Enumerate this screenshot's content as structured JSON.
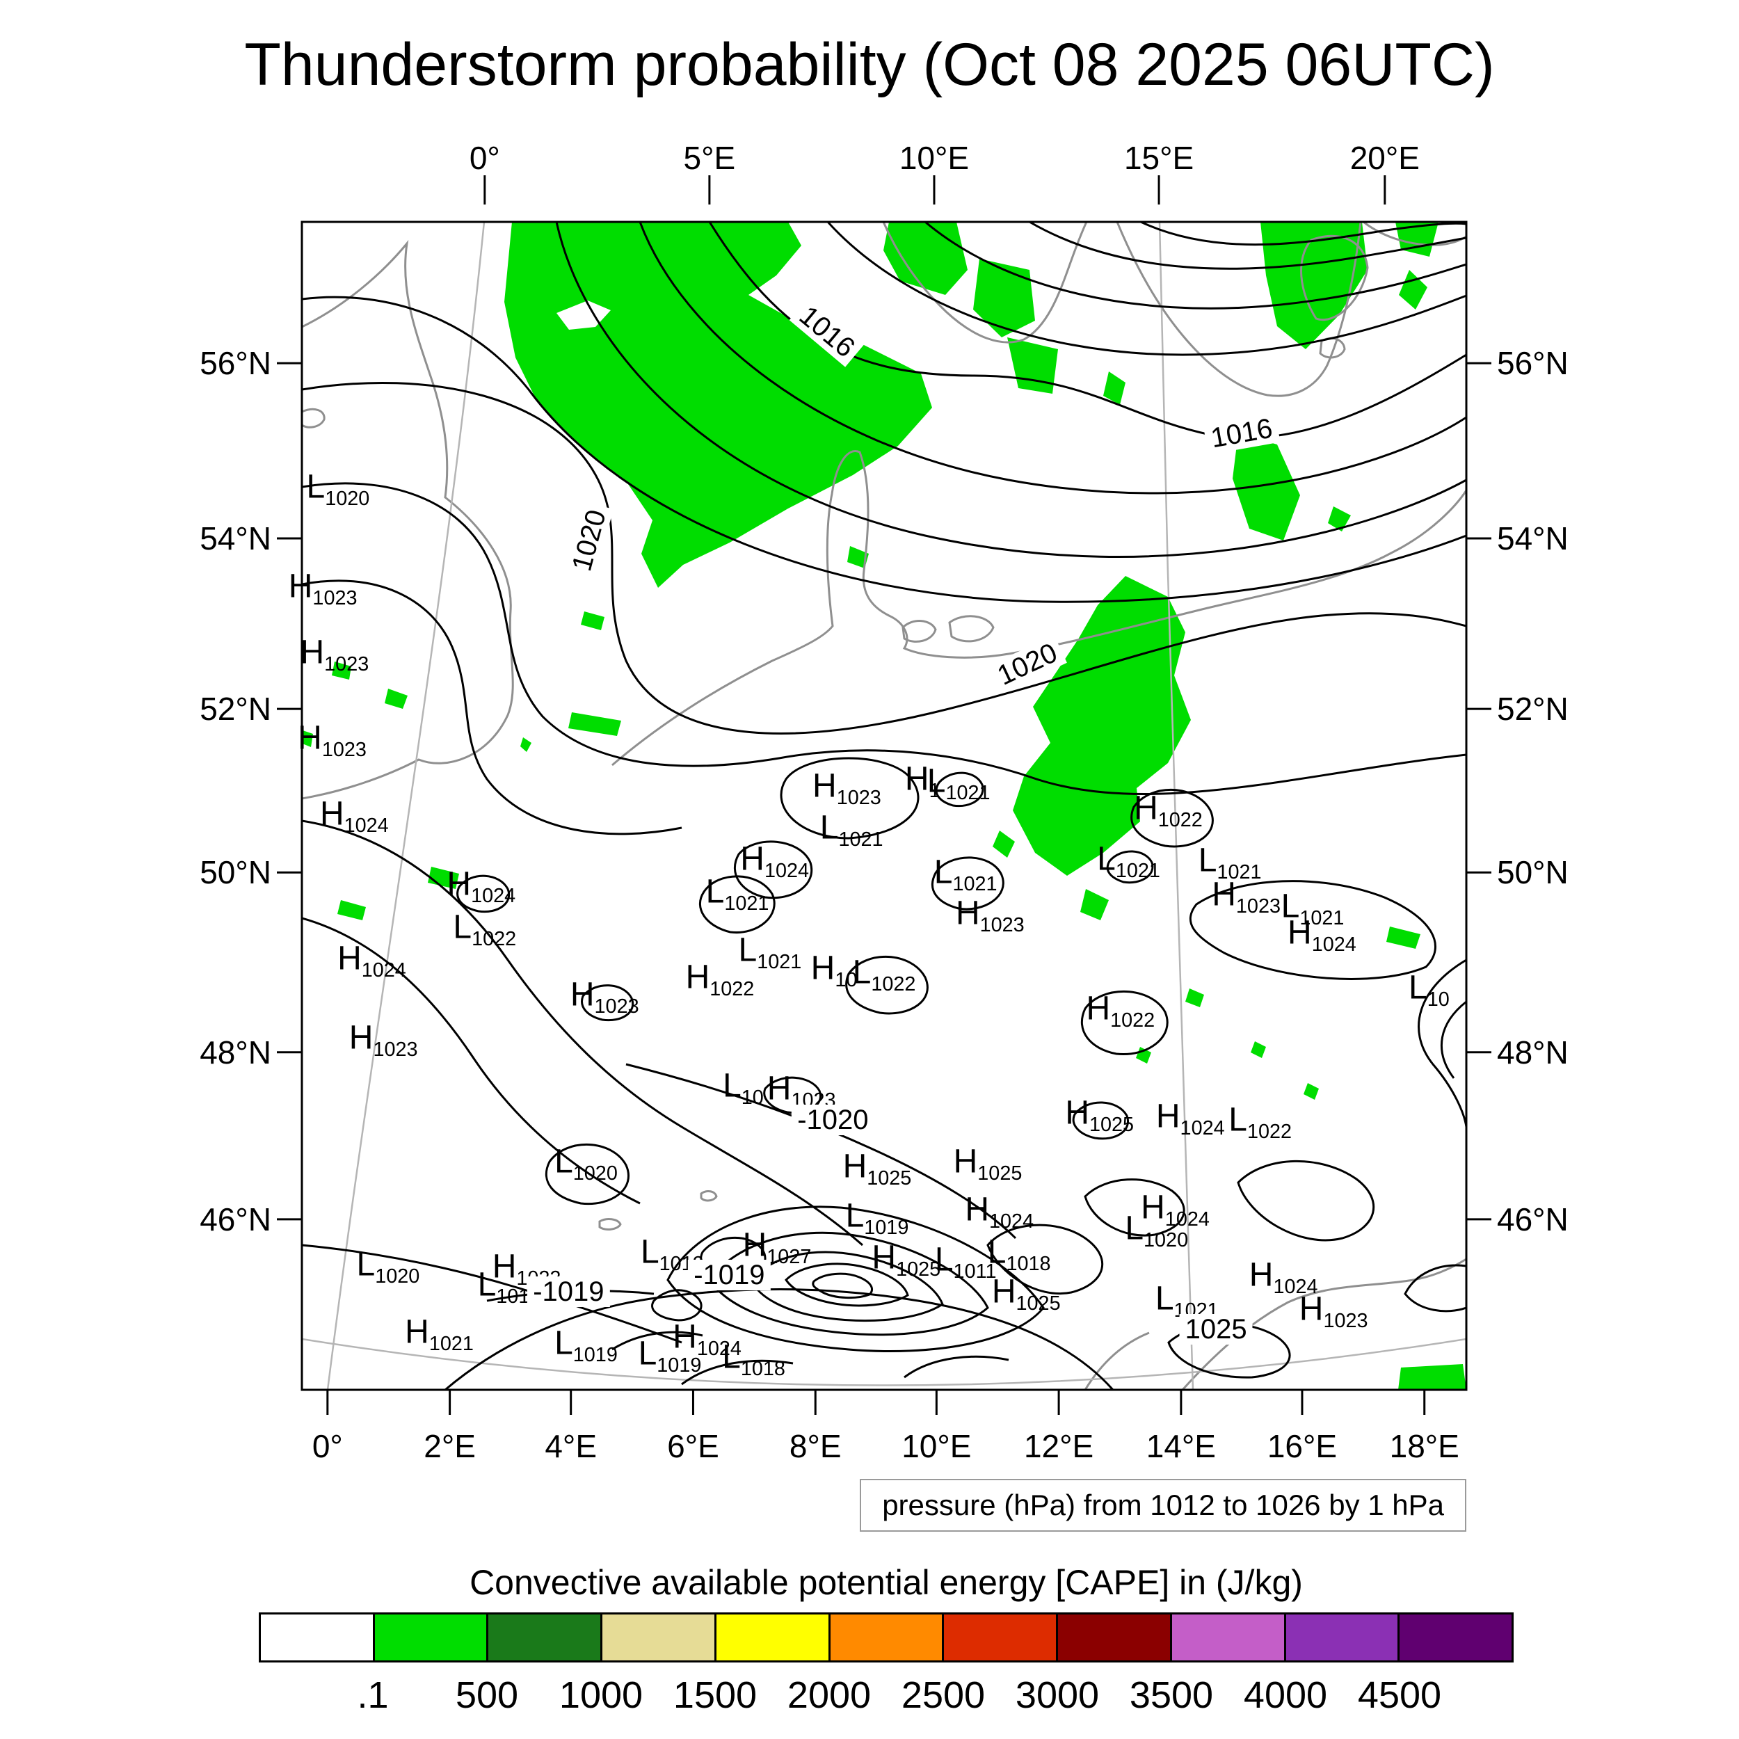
{
  "title": "Thunderstorm probability (Oct 08 2025 06UTC)",
  "map": {
    "pressure_note": "pressure (hPa) from 1012 to 1026 by 1 hPa",
    "axes": {
      "top": [
        {
          "label": "0°",
          "f": 0.157
        },
        {
          "label": "5°E",
          "f": 0.35
        },
        {
          "label": "10°E",
          "f": 0.543
        },
        {
          "label": "15°E",
          "f": 0.736
        },
        {
          "label": "20°E",
          "f": 0.93
        }
      ],
      "bottom": [
        {
          "label": "0°",
          "f": 0.022
        },
        {
          "label": "2°E",
          "f": 0.127
        },
        {
          "label": "4°E",
          "f": 0.231
        },
        {
          "label": "6°E",
          "f": 0.336
        },
        {
          "label": "8°E",
          "f": 0.441
        },
        {
          "label": "10°E",
          "f": 0.545
        },
        {
          "label": "12°E",
          "f": 0.65
        },
        {
          "label": "14°E",
          "f": 0.755
        },
        {
          "label": "16°E",
          "f": 0.859
        },
        {
          "label": "18°E",
          "f": 0.964
        }
      ],
      "left": [
        {
          "label": "56°N",
          "f": 0.121
        },
        {
          "label": "54°N",
          "f": 0.271
        },
        {
          "label": "52°N",
          "f": 0.417
        },
        {
          "label": "50°N",
          "f": 0.557
        },
        {
          "label": "48°N",
          "f": 0.711
        },
        {
          "label": "46°N",
          "f": 0.854
        }
      ],
      "right": [
        {
          "label": "56°N",
          "f": 0.121
        },
        {
          "label": "54°N",
          "f": 0.271
        },
        {
          "label": "52°N",
          "f": 0.417
        },
        {
          "label": "50°N",
          "f": 0.557
        },
        {
          "label": "48°N",
          "f": 0.711
        },
        {
          "label": "46°N",
          "f": 0.854
        }
      ]
    }
  },
  "colorbar": {
    "title": "Convective available potential energy [CAPE] in (J/kg)",
    "tick_labels": [
      ".1",
      "500",
      "1000",
      "1500",
      "2000",
      "2500",
      "3000",
      "3500",
      "4000",
      "4500"
    ],
    "colors": [
      "#ffffff",
      "#00dd00",
      "#1a7a1a",
      "#e6dc96",
      "#ffff00",
      "#ff8a00",
      "#dd2c00",
      "#8b0000",
      "#c45ec8",
      "#8b30b4",
      "#600070"
    ]
  },
  "chart_data": {
    "type": "heatmap",
    "title": "Thunderstorm probability (Oct 08 2025 06UTC)",
    "shaded_variable": "Convective available potential energy [CAPE] in (J/kg)",
    "cape_levels": [
      0.1,
      500,
      1000,
      1500,
      2000,
      2500,
      3000,
      3500,
      4000,
      4500
    ],
    "cape_colors": [
      "#ffffff",
      "#00dd00",
      "#1a7a1a",
      "#e6dc96",
      "#ffff00",
      "#ff8a00",
      "#dd2c00",
      "#8b0000",
      "#c45ec8",
      "#8b30b4",
      "#600070"
    ],
    "pressure_contours": {
      "unit": "hPa",
      "from": 1012,
      "to": 1026,
      "by": 1
    },
    "contour_labels": [
      {
        "v": "1016",
        "x": 0.451,
        "y": 0.094,
        "r": 40
      },
      {
        "v": "1016",
        "x": 0.807,
        "y": 0.181,
        "r": -10
      },
      {
        "v": "1020",
        "x": 0.247,
        "y": 0.273,
        "r": -75
      },
      {
        "v": "1020",
        "x": 0.623,
        "y": 0.379,
        "r": -25
      },
      {
        "v": "-1020",
        "x": 0.456,
        "y": 0.769,
        "r": 0
      },
      {
        "v": "-1019",
        "x": 0.229,
        "y": 0.916,
        "r": 0
      },
      {
        "v": "-1019",
        "x": 0.367,
        "y": 0.902,
        "r": 0
      },
      {
        "v": "1025",
        "x": 0.785,
        "y": 0.948,
        "r": 0
      }
    ],
    "pressure_centers": [
      {
        "t": "L",
        "v": "1020",
        "x": 0.031,
        "y": 0.231
      },
      {
        "t": "H",
        "v": "1023",
        "x": 0.018,
        "y": 0.316
      },
      {
        "t": "H",
        "v": "1023",
        "x": 0.028,
        "y": 0.373
      },
      {
        "t": "H",
        "v": "1023",
        "x": 0.026,
        "y": 0.446
      },
      {
        "t": "H",
        "v": "1024",
        "x": 0.045,
        "y": 0.511
      },
      {
        "t": "H",
        "v": "1024",
        "x": 0.154,
        "y": 0.571
      },
      {
        "t": "L",
        "v": "1022",
        "x": 0.157,
        "y": 0.608
      },
      {
        "t": "H",
        "v": "1024",
        "x": 0.06,
        "y": 0.635
      },
      {
        "t": "H",
        "v": "1023",
        "x": 0.07,
        "y": 0.703
      },
      {
        "t": "H",
        "v": "1023",
        "x": 0.26,
        "y": 0.666
      },
      {
        "t": "H",
        "v": "1023",
        "x": 0.468,
        "y": 0.487
      },
      {
        "t": "H",
        "v": "1",
        "x": 0.533,
        "y": 0.481
      },
      {
        "t": "L",
        "v": "1021",
        "x": 0.564,
        "y": 0.483
      },
      {
        "t": "L",
        "v": "1021",
        "x": 0.472,
        "y": 0.523
      },
      {
        "t": "H",
        "v": "1024",
        "x": 0.406,
        "y": 0.55
      },
      {
        "t": "L",
        "v": "1021",
        "x": 0.374,
        "y": 0.578
      },
      {
        "t": "L",
        "v": "1021",
        "x": 0.57,
        "y": 0.561
      },
      {
        "t": "H",
        "v": "1023",
        "x": 0.591,
        "y": 0.596
      },
      {
        "t": "L",
        "v": "1021",
        "x": 0.71,
        "y": 0.55
      },
      {
        "t": "H",
        "v": "1022",
        "x": 0.744,
        "y": 0.506
      },
      {
        "t": "L",
        "v": "1021",
        "x": 0.797,
        "y": 0.551
      },
      {
        "t": "H",
        "v": "1023",
        "x": 0.811,
        "y": 0.58
      },
      {
        "t": "L",
        "v": "1021",
        "x": 0.868,
        "y": 0.59
      },
      {
        "t": "H",
        "v": "1024",
        "x": 0.876,
        "y": 0.613
      },
      {
        "t": "L",
        "v": "1021",
        "x": 0.402,
        "y": 0.628
      },
      {
        "t": "H",
        "v": "1022",
        "x": 0.359,
        "y": 0.651
      },
      {
        "t": "H",
        "v": "10",
        "x": 0.457,
        "y": 0.643
      },
      {
        "t": "L",
        "v": "1022",
        "x": 0.5,
        "y": 0.647
      },
      {
        "t": "L",
        "v": "10",
        "x": 0.968,
        "y": 0.66
      },
      {
        "t": "H",
        "v": "1022",
        "x": 0.703,
        "y": 0.678
      },
      {
        "t": "L",
        "v": "10",
        "x": 0.379,
        "y": 0.744
      },
      {
        "t": "H",
        "v": "1023",
        "x": 0.429,
        "y": 0.746
      },
      {
        "t": "H",
        "v": "1025",
        "x": 0.685,
        "y": 0.767
      },
      {
        "t": "H",
        "v": "1024",
        "x": 0.763,
        "y": 0.77
      },
      {
        "t": "L",
        "v": "1022",
        "x": 0.823,
        "y": 0.773
      },
      {
        "t": "L",
        "v": "1020",
        "x": 0.244,
        "y": 0.809
      },
      {
        "t": "H",
        "v": "1025",
        "x": 0.494,
        "y": 0.813
      },
      {
        "t": "H",
        "v": "1025",
        "x": 0.589,
        "y": 0.809
      },
      {
        "t": "H",
        "v": "1024",
        "x": 0.599,
        "y": 0.85
      },
      {
        "t": "H",
        "v": "1024",
        "x": 0.75,
        "y": 0.848
      },
      {
        "t": "L",
        "v": "1019",
        "x": 0.494,
        "y": 0.855
      },
      {
        "t": "L",
        "v": "1020",
        "x": 0.734,
        "y": 0.866
      },
      {
        "t": "L",
        "v": "1020",
        "x": 0.074,
        "y": 0.897
      },
      {
        "t": "H",
        "v": "1022",
        "x": 0.193,
        "y": 0.899
      },
      {
        "t": "L",
        "v": "1019",
        "x": 0.178,
        "y": 0.914
      },
      {
        "t": "L",
        "v": "1019",
        "x": 0.318,
        "y": 0.886
      },
      {
        "t": "H",
        "v": "1027",
        "x": 0.408,
        "y": 0.88
      },
      {
        "t": "H",
        "v": "1025",
        "x": 0.519,
        "y": 0.891
      },
      {
        "t": "L",
        "v": "1011",
        "x": 0.57,
        "y": 0.893
      },
      {
        "t": "L",
        "v": "1018",
        "x": 0.616,
        "y": 0.886
      },
      {
        "t": "H",
        "v": "1025",
        "x": 0.622,
        "y": 0.92
      },
      {
        "t": "H",
        "v": "1024",
        "x": 0.843,
        "y": 0.906
      },
      {
        "t": "L",
        "v": "1021",
        "x": 0.76,
        "y": 0.926
      },
      {
        "t": "H",
        "v": "1023",
        "x": 0.886,
        "y": 0.935
      },
      {
        "t": "H",
        "v": "1021",
        "x": 0.118,
        "y": 0.955
      },
      {
        "t": "L",
        "v": "1019",
        "x": 0.244,
        "y": 0.964
      },
      {
        "t": "H",
        "v": "1024",
        "x": 0.348,
        "y": 0.959
      },
      {
        "t": "L",
        "v": "1019",
        "x": 0.316,
        "y": 0.973
      },
      {
        "t": "L",
        "v": "1018",
        "x": 0.388,
        "y": 0.976
      }
    ]
  }
}
